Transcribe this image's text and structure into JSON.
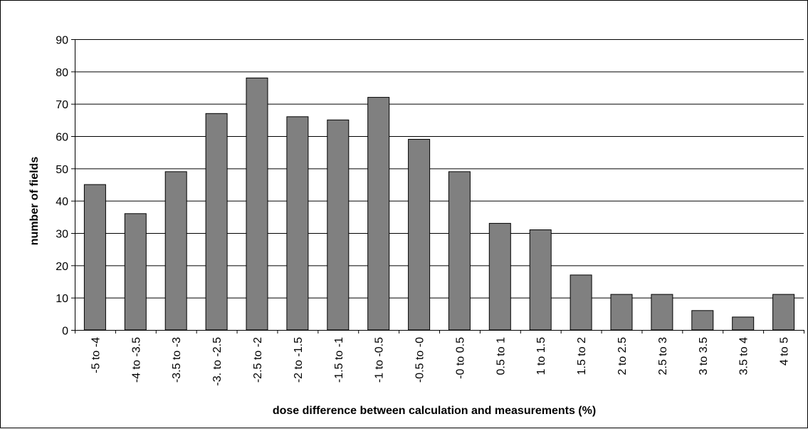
{
  "chart_data": {
    "type": "bar",
    "title": "",
    "xlabel": "dose difference between calculation and measurements (%)",
    "ylabel": "number of fields",
    "ylim": [
      0,
      90
    ],
    "yticks": [
      0,
      10,
      20,
      30,
      40,
      50,
      60,
      70,
      80,
      90
    ],
    "grid": true,
    "legend": "none",
    "categories": [
      "-5 to -4",
      "-4 to -3.5",
      "-3.5 to -3",
      "-3. to -2.5",
      "-2.5 to -2",
      "-2 to -1.5",
      "-1.5 to -1",
      "-1 to -0.5",
      "-0.5 to -0",
      "-0 to 0.5",
      "0.5 to 1",
      "1 to 1.5",
      "1.5 to 2",
      "2 to 2.5",
      "2.5 to 3",
      "3 to 3.5",
      "3.5 to 4",
      "4  to 5"
    ],
    "values": [
      45,
      36,
      49,
      67,
      78,
      66,
      65,
      72,
      59,
      49,
      33,
      31,
      17,
      11,
      11,
      6,
      4,
      11
    ],
    "colors": {
      "bar_fill": "#808080",
      "bar_stroke": "#000000",
      "grid": "#000000",
      "axis": "#000000"
    }
  }
}
